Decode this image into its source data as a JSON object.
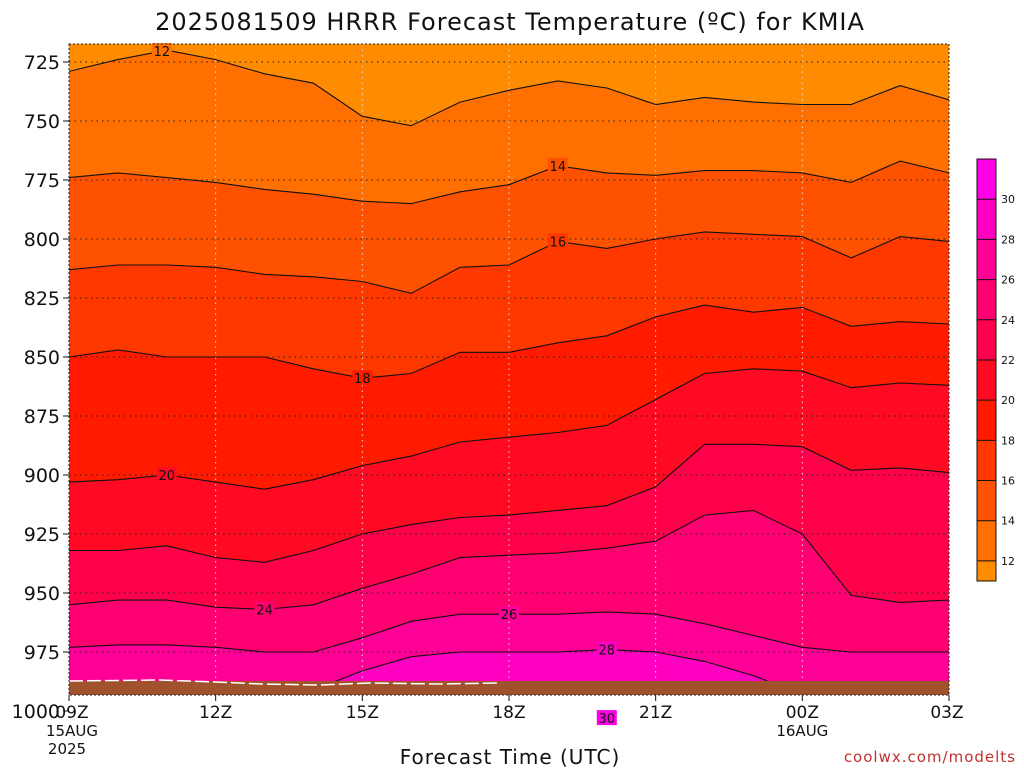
{
  "chart_data": {
    "type": "contour",
    "title": "2025081509 HRRR Forecast Temperature (ºC) for KMIA",
    "xlabel": "Forecast Time (UTC)",
    "credit": "coolwx.com/modelts",
    "x_ticks": [
      {
        "label": "09Z",
        "sub1": "15AUG",
        "sub2": "2025",
        "hour": 0
      },
      {
        "label": "12Z",
        "sub1": "",
        "sub2": "",
        "hour": 3
      },
      {
        "label": "15Z",
        "sub1": "",
        "sub2": "",
        "hour": 6
      },
      {
        "label": "18Z",
        "sub1": "",
        "sub2": "",
        "hour": 9
      },
      {
        "label": "21Z",
        "sub1": "",
        "sub2": "",
        "hour": 12
      },
      {
        "label": "00Z",
        "sub1": "16AUG",
        "sub2": "",
        "hour": 15
      },
      {
        "label": "03Z",
        "sub1": "",
        "sub2": "",
        "hour": 18
      }
    ],
    "y_ticks": [
      725,
      750,
      775,
      800,
      825,
      850,
      875,
      900,
      925,
      950,
      975,
      1000
    ],
    "xlim_hours": [
      0,
      18
    ],
    "ylim_hpa": [
      712,
      1018
    ],
    "colorbar": {
      "labels": [
        "12",
        "14",
        "16",
        "18",
        "20",
        "22",
        "24",
        "26",
        "28",
        "30"
      ],
      "levels": [
        {
          "min": 11,
          "max": 12,
          "color": "#ff8c00"
        },
        {
          "min": 12,
          "max": 14,
          "color": "#ff7000"
        },
        {
          "min": 14,
          "max": 16,
          "color": "#ff5200"
        },
        {
          "min": 16,
          "max": 18,
          "color": "#ff3800"
        },
        {
          "min": 18,
          "max": 20,
          "color": "#ff1a00"
        },
        {
          "min": 20,
          "max": 22,
          "color": "#ff0a22"
        },
        {
          "min": 22,
          "max": 24,
          "color": "#ff004a"
        },
        {
          "min": 24,
          "max": 26,
          "color": "#ff0070"
        },
        {
          "min": 26,
          "max": 28,
          "color": "#ff0096"
        },
        {
          "min": 28,
          "max": 30,
          "color": "#ff00c0"
        },
        {
          "min": 30,
          "max": 32,
          "color": "#ff00e6"
        }
      ]
    },
    "ground_color": "#a0522d",
    "contours": [
      {
        "level": 12,
        "label": "12",
        "label_at": 1.9,
        "points": [
          [
            0,
            729
          ],
          [
            1,
            724
          ],
          [
            2,
            720
          ],
          [
            3,
            724
          ],
          [
            4,
            730
          ],
          [
            5,
            734
          ],
          [
            6,
            748
          ],
          [
            7,
            752
          ],
          [
            8,
            742
          ],
          [
            9,
            737
          ],
          [
            10,
            733
          ],
          [
            11,
            736
          ],
          [
            12,
            743
          ],
          [
            13,
            740
          ],
          [
            14,
            742
          ],
          [
            15,
            743
          ],
          [
            16,
            743
          ],
          [
            17,
            735
          ],
          [
            18,
            741
          ]
        ]
      },
      {
        "level": 14,
        "label": "14",
        "label_at": 10,
        "points": [
          [
            0,
            774
          ],
          [
            1,
            772
          ],
          [
            2,
            774
          ],
          [
            3,
            776
          ],
          [
            4,
            779
          ],
          [
            5,
            781
          ],
          [
            6,
            784
          ],
          [
            7,
            785
          ],
          [
            8,
            780
          ],
          [
            9,
            777
          ],
          [
            10,
            769
          ],
          [
            11,
            772
          ],
          [
            12,
            773
          ],
          [
            13,
            771
          ],
          [
            14,
            771
          ],
          [
            15,
            772
          ],
          [
            16,
            776
          ],
          [
            17,
            767
          ],
          [
            18,
            772
          ]
        ]
      },
      {
        "level": 16,
        "label": "16",
        "label_at": 10,
        "points": [
          [
            0,
            813
          ],
          [
            1,
            811
          ],
          [
            2,
            811
          ],
          [
            3,
            812
          ],
          [
            4,
            815
          ],
          [
            5,
            816
          ],
          [
            6,
            818
          ],
          [
            7,
            823
          ],
          [
            8,
            812
          ],
          [
            9,
            811
          ],
          [
            10,
            801
          ],
          [
            11,
            804
          ],
          [
            12,
            800
          ],
          [
            13,
            797
          ],
          [
            14,
            798
          ],
          [
            15,
            799
          ],
          [
            16,
            808
          ],
          [
            17,
            799
          ],
          [
            18,
            801
          ]
        ]
      },
      {
        "level": 18,
        "label": "18",
        "label_at": 6,
        "points": [
          [
            0,
            850
          ],
          [
            1,
            847
          ],
          [
            2,
            850
          ],
          [
            3,
            850
          ],
          [
            4,
            850
          ],
          [
            5,
            855
          ],
          [
            6,
            859
          ],
          [
            7,
            857
          ],
          [
            8,
            848
          ],
          [
            9,
            848
          ],
          [
            10,
            844
          ],
          [
            11,
            841
          ],
          [
            12,
            833
          ],
          [
            13,
            828
          ],
          [
            14,
            831
          ],
          [
            15,
            829
          ],
          [
            16,
            837
          ],
          [
            17,
            835
          ],
          [
            18,
            836
          ]
        ]
      },
      {
        "level": 20,
        "label": "20",
        "label_at": 2,
        "points": [
          [
            0,
            903
          ],
          [
            1,
            902
          ],
          [
            2,
            900
          ],
          [
            3,
            903
          ],
          [
            4,
            906
          ],
          [
            5,
            902
          ],
          [
            6,
            896
          ],
          [
            7,
            892
          ],
          [
            8,
            886
          ],
          [
            9,
            884
          ],
          [
            10,
            882
          ],
          [
            11,
            879
          ],
          [
            12,
            868
          ],
          [
            13,
            857
          ],
          [
            14,
            855
          ],
          [
            15,
            856
          ],
          [
            16,
            863
          ],
          [
            17,
            861
          ],
          [
            18,
            862
          ]
        ]
      },
      {
        "level": 22,
        "label": "",
        "label_at": 0,
        "points": [
          [
            0,
            932
          ],
          [
            1,
            932
          ],
          [
            2,
            930
          ],
          [
            3,
            935
          ],
          [
            4,
            937
          ],
          [
            5,
            932
          ],
          [
            6,
            925
          ],
          [
            7,
            921
          ],
          [
            8,
            918
          ],
          [
            9,
            917
          ],
          [
            10,
            915
          ],
          [
            11,
            913
          ],
          [
            12,
            905
          ],
          [
            13,
            887
          ],
          [
            14,
            887
          ],
          [
            15,
            888
          ],
          [
            16,
            898
          ],
          [
            17,
            897
          ],
          [
            18,
            899
          ]
        ]
      },
      {
        "level": 24,
        "label": "24",
        "label_at": 4,
        "points": [
          [
            0,
            955
          ],
          [
            1,
            953
          ],
          [
            2,
            953
          ],
          [
            3,
            956
          ],
          [
            4,
            957
          ],
          [
            5,
            955
          ],
          [
            6,
            948
          ],
          [
            7,
            942
          ],
          [
            8,
            935
          ],
          [
            9,
            934
          ],
          [
            10,
            933
          ],
          [
            11,
            931
          ],
          [
            12,
            928
          ],
          [
            13,
            917
          ],
          [
            14,
            915
          ],
          [
            15,
            925
          ],
          [
            16,
            951
          ],
          [
            17,
            954
          ],
          [
            18,
            953
          ]
        ]
      },
      {
        "level": 26,
        "label": "26",
        "label_at": 9,
        "points": [
          [
            0,
            973
          ],
          [
            1,
            972
          ],
          [
            2,
            972
          ],
          [
            3,
            973
          ],
          [
            4,
            975
          ],
          [
            5,
            975
          ],
          [
            6,
            969
          ],
          [
            7,
            962
          ],
          [
            8,
            959
          ],
          [
            9,
            959
          ],
          [
            10,
            959
          ],
          [
            11,
            958
          ],
          [
            12,
            959
          ],
          [
            13,
            963
          ],
          [
            14,
            968
          ],
          [
            15,
            973
          ],
          [
            16,
            975
          ],
          [
            17,
            975
          ],
          [
            18,
            975
          ]
        ]
      },
      {
        "level": 28,
        "label": "28",
        "label_at": 11,
        "points": [
          [
            0,
            995
          ],
          [
            1,
            996
          ],
          [
            2,
            996
          ],
          [
            3,
            998
          ],
          [
            4,
            994
          ],
          [
            5,
            991
          ],
          [
            6,
            983
          ],
          [
            7,
            977
          ],
          [
            8,
            975
          ],
          [
            9,
            975
          ],
          [
            10,
            975
          ],
          [
            11,
            974
          ],
          [
            12,
            975
          ],
          [
            13,
            979
          ],
          [
            14,
            985
          ],
          [
            15,
            993
          ],
          [
            16,
            997
          ],
          [
            17,
            998
          ],
          [
            18,
            998
          ]
        ]
      },
      {
        "level": 30,
        "label": "30",
        "label_at": 11,
        "points": [
          [
            3.5,
            1016
          ],
          [
            4.5,
            1014
          ],
          [
            5.5,
            1013
          ],
          [
            6.5,
            1009
          ],
          [
            7.5,
            1005
          ],
          [
            8,
            1003
          ],
          [
            9,
            1003
          ],
          [
            10,
            1003
          ],
          [
            11,
            1003
          ],
          [
            12,
            1004
          ],
          [
            13,
            1008
          ],
          [
            14,
            1012
          ],
          [
            14.6,
            1016
          ]
        ]
      }
    ]
  }
}
